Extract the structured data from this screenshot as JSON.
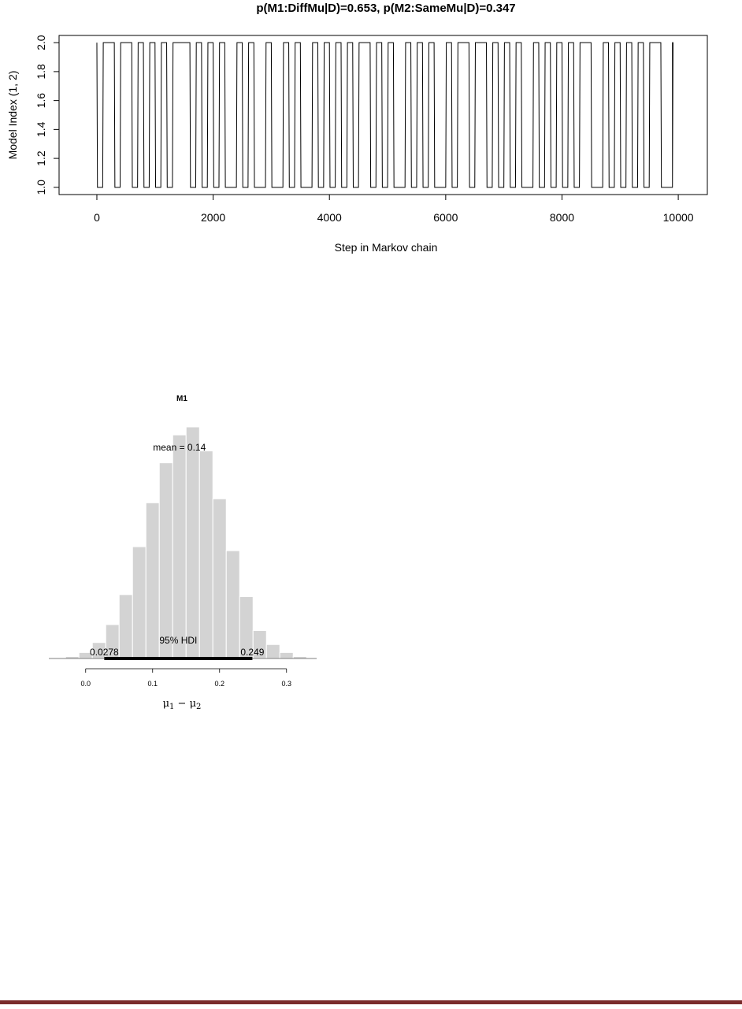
{
  "chart_data": [
    {
      "type": "line",
      "title": "p(M1:DiffMu|D)=0.653, p(M2:SameMu|D)=0.347",
      "xlabel": "Step in Markov chain",
      "ylabel": "Model Index (1, 2)",
      "xlim": [
        -650,
        10500
      ],
      "ylim": [
        0.95,
        2.05
      ],
      "xticks": [
        "0",
        "2000",
        "4000",
        "6000",
        "8000",
        "10000"
      ],
      "yticks": [
        "1.0",
        "1.2",
        "1.4",
        "1.6",
        "1.8",
        "2.0"
      ],
      "legend": "none",
      "grid": false,
      "series_step": 10,
      "x_max": 9900,
      "switch_points": [
        0,
        100,
        300,
        400,
        600,
        700,
        800,
        900,
        1000,
        1100,
        1200,
        1300,
        1600,
        1700,
        1800,
        1900,
        2000,
        2100,
        2200,
        2400,
        2500,
        2600,
        2700,
        2900,
        3000,
        3200,
        3300,
        3400,
        3500,
        3700,
        3800,
        3900,
        4000,
        4100,
        4200,
        4300,
        4400,
        4500,
        4700,
        4800,
        4900,
        5000,
        5100,
        5300,
        5400,
        5500,
        5600,
        5700,
        5800,
        6000,
        6100,
        6200,
        6400,
        6500,
        6700,
        6800,
        6900,
        7000,
        7100,
        7200,
        7300,
        7500,
        7600,
        7700,
        7800,
        7900,
        8000,
        8100,
        8200,
        8300,
        8500,
        8700,
        8800,
        8900,
        9000,
        9100,
        9200,
        9300,
        9400,
        9500,
        9700,
        9900
      ],
      "start_value": 2
    },
    {
      "type": "bar",
      "title": "M1",
      "xlabel_main": "μ",
      "xlabel_sub1": "1",
      "xlabel_sep": " − ",
      "xlabel_sub2": "2",
      "xlim": [
        -0.055,
        0.345
      ],
      "xticks": [
        "0.0",
        "0.1",
        "0.2",
        "0.3"
      ],
      "bin_width": 0.02,
      "bin_starts": [
        -0.03,
        -0.01,
        0.01,
        0.03,
        0.05,
        0.07,
        0.09,
        0.11,
        0.13,
        0.15,
        0.17,
        0.19,
        0.21,
        0.23,
        0.25,
        0.27,
        0.29,
        0.31
      ],
      "counts": [
        0.5,
        1.5,
        4,
        8.5,
        16,
        28,
        39,
        49,
        56,
        58,
        52,
        40,
        27,
        15.5,
        7,
        3.5,
        1.5,
        0.5
      ],
      "ymax": 58,
      "mean_label": "mean = 0.14",
      "hdi_label": "95% HDI",
      "hdi_low": 0.0278,
      "hdi_high": 0.249,
      "hdi_low_label": "0.0278",
      "hdi_high_label": "0.249",
      "bar_color": "#d3d3d3"
    }
  ]
}
